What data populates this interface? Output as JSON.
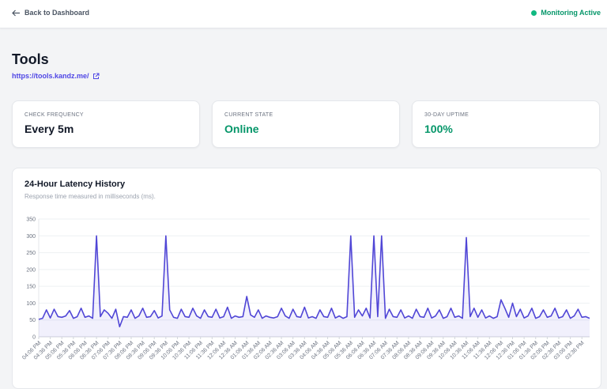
{
  "header": {
    "back": "Back to Dashboard",
    "status": "Monitoring Active"
  },
  "site": {
    "name": "Tools",
    "url": "https://tools.kandz.me/"
  },
  "cards": [
    {
      "label": "CHECK FREQUENCY",
      "value": "Every 5m"
    },
    {
      "label": "CURRENT STATE",
      "value": "Online"
    },
    {
      "label": "30-DAY UPTIME",
      "value": "100%"
    }
  ],
  "chart_data": {
    "type": "line",
    "title": "24-Hour Latency History",
    "subtitle": "Response time measured in milliseconds (ms).",
    "categories": [
      "04:06 PM",
      null,
      null,
      "04:36 PM",
      null,
      null,
      "05:06 PM",
      null,
      null,
      "05:36 PM",
      null,
      null,
      "06:06 PM",
      null,
      null,
      "06:36 PM",
      null,
      null,
      "07:06 PM",
      null,
      null,
      "07:36 PM",
      null,
      null,
      "08:06 PM",
      null,
      null,
      "08:36 PM",
      null,
      null,
      "09:06 PM",
      null,
      null,
      "09:36 PM",
      null,
      null,
      "10:06 PM",
      null,
      null,
      "10:36 PM",
      null,
      null,
      "11:06 PM",
      null,
      null,
      "11:36 PM",
      null,
      null,
      "12:06 AM",
      null,
      null,
      "12:36 AM",
      null,
      null,
      "01:06 AM",
      null,
      null,
      "01:36 AM",
      null,
      null,
      "02:06 AM",
      null,
      null,
      "02:36 AM",
      null,
      null,
      "03:06 AM",
      null,
      null,
      "03:36 AM",
      null,
      null,
      "04:06 AM",
      null,
      null,
      "04:36 AM",
      null,
      null,
      "05:06 AM",
      null,
      null,
      "05:36 AM",
      null,
      null,
      "06:06 AM",
      null,
      null,
      "06:36 AM",
      null,
      null,
      "07:06 AM",
      null,
      null,
      "07:36 AM",
      null,
      null,
      "08:06 AM",
      null,
      null,
      "08:36 AM",
      null,
      null,
      "09:06 AM",
      null,
      null,
      "09:36 AM",
      null,
      null,
      "10:06 AM",
      null,
      null,
      "10:36 AM",
      null,
      null,
      "11:06 AM",
      null,
      null,
      "11:36 AM",
      null,
      null,
      "12:06 PM",
      null,
      null,
      "12:36 PM",
      null,
      null,
      "01:06 PM",
      null,
      null,
      "01:36 PM",
      null,
      null,
      "02:06 PM",
      null,
      null,
      "02:36 PM",
      null,
      null,
      "03:06 PM",
      null,
      null,
      "03:36 PM",
      null,
      null
    ],
    "values": [
      52,
      55,
      80,
      56,
      82,
      60,
      58,
      62,
      78,
      55,
      60,
      85,
      58,
      62,
      55,
      300,
      60,
      80,
      70,
      55,
      82,
      30,
      60,
      58,
      80,
      55,
      62,
      85,
      58,
      60,
      78,
      56,
      62,
      300,
      80,
      58,
      55,
      82,
      60,
      58,
      85,
      62,
      55,
      80,
      60,
      58,
      82,
      56,
      60,
      88,
      55,
      62,
      58,
      60,
      120,
      65,
      58,
      80,
      55,
      62,
      58,
      56,
      60,
      85,
      62,
      55,
      82,
      60,
      58,
      88,
      56,
      60,
      55,
      80,
      60,
      58,
      85,
      56,
      62,
      55,
      60,
      300,
      58,
      80,
      62,
      85,
      56,
      300,
      60,
      300,
      55,
      82,
      60,
      58,
      80,
      56,
      62,
      55,
      82,
      60,
      58,
      85,
      56,
      62,
      80,
      55,
      60,
      85,
      58,
      62,
      55,
      295,
      60,
      85,
      58,
      80,
      56,
      62,
      55,
      60,
      110,
      85,
      58,
      100,
      60,
      82,
      56,
      62,
      85,
      55,
      60,
      80,
      58,
      62,
      85,
      56,
      60,
      80,
      55,
      62,
      82,
      58,
      60,
      55
    ],
    "color": "#5046d6",
    "ylim": [
      0,
      350
    ],
    "yticks": [
      0,
      50,
      100,
      150,
      200,
      250,
      300,
      350
    ],
    "grid": true
  }
}
